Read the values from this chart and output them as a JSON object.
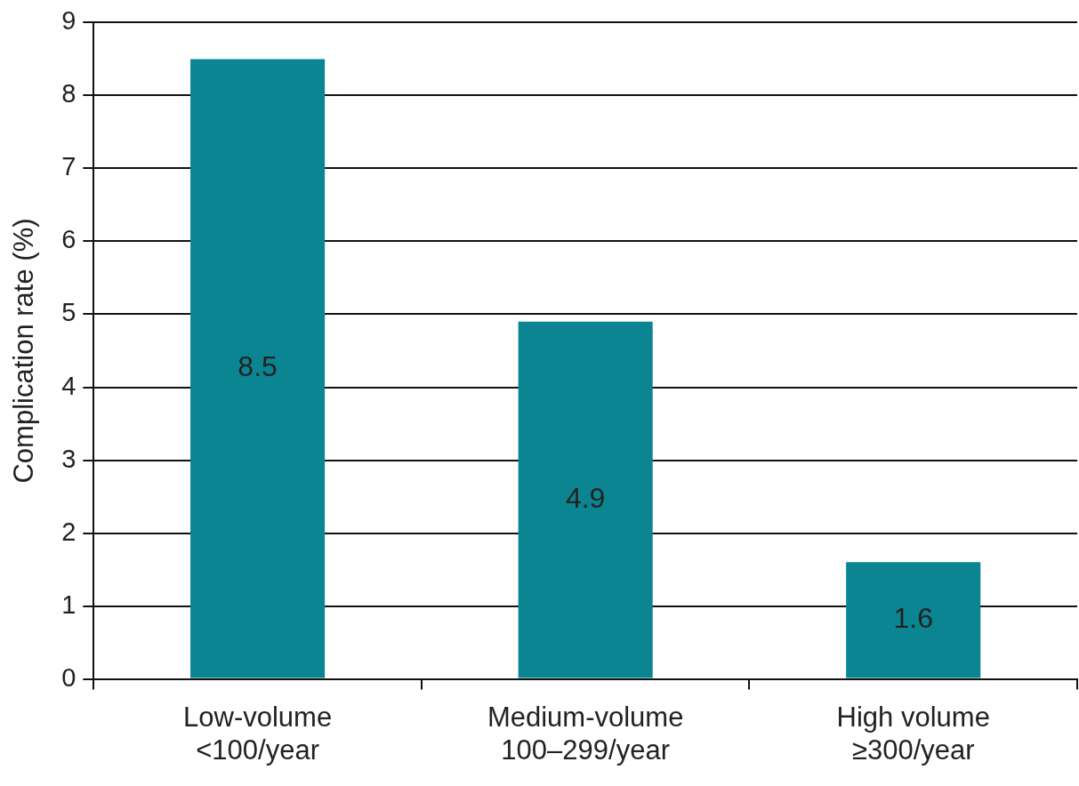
{
  "chart_data": {
    "type": "bar",
    "ylabel": "Complication rate (%)",
    "categories": [
      "Low-volume\n<100/year",
      "Medium-volume\n100–299/year",
      "High volume\n≥300/year"
    ],
    "values": [
      8.5,
      4.9,
      1.6
    ],
    "color": "#0b8591",
    "ylim": [
      0,
      9
    ],
    "yticks": [
      0,
      1,
      2,
      3,
      4,
      5,
      6,
      7,
      8,
      9
    ],
    "grid": "y",
    "data_labels": true,
    "legend": false
  }
}
